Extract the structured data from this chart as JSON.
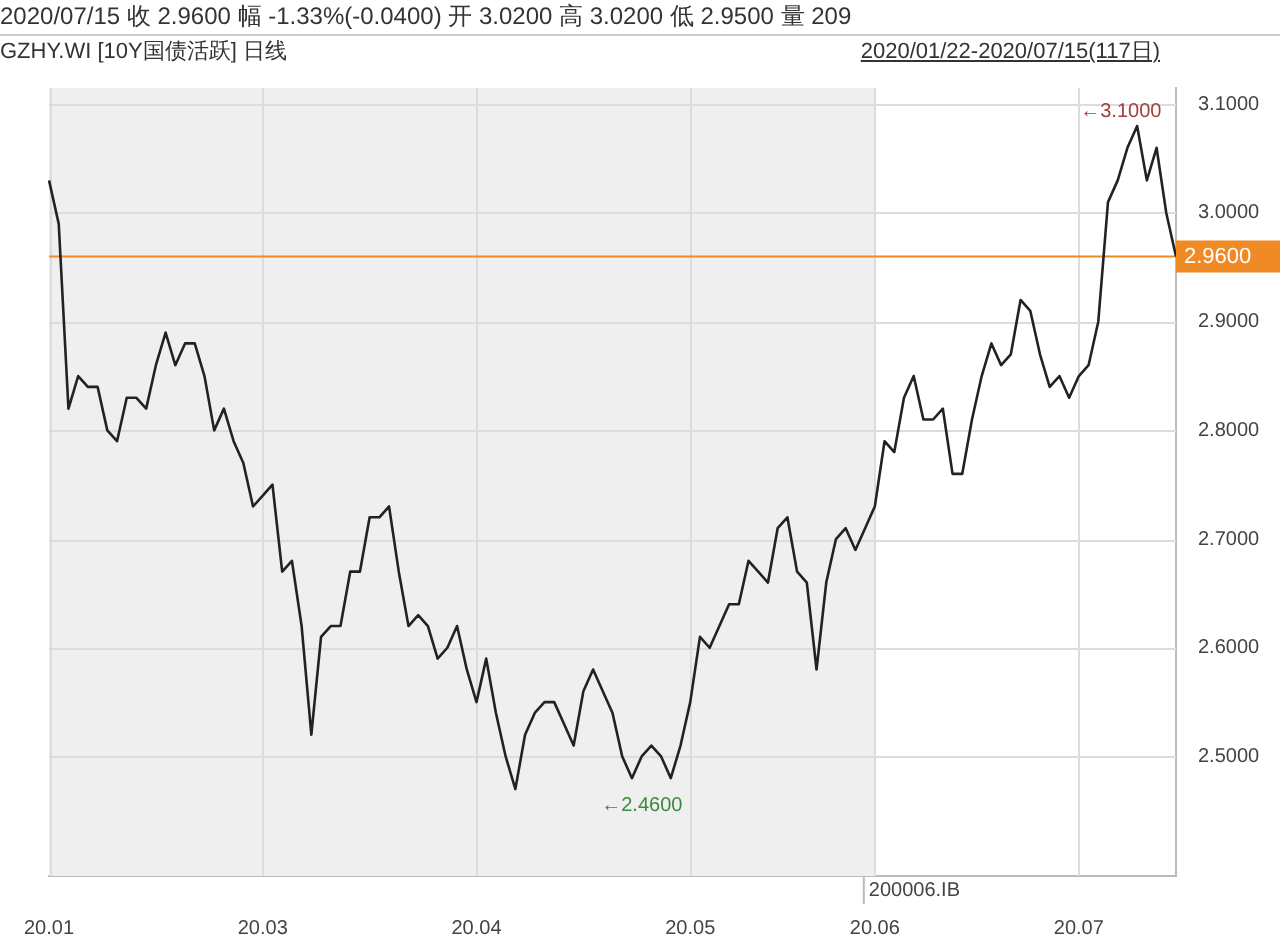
{
  "chart_data": {
    "type": "line",
    "title": "2020/07/15  收 2.9600  幅 -1.33%(-0.0400)  开 3.0200  高 3.0200  低 2.9500  量 209",
    "subtitle": "GZHY.WI [10Y国债活跃] 日线",
    "annotations": [
      "2020/01/22-2020/07/15(117日)",
      "←3.1000",
      "←2.4600"
    ],
    "categories": [
      "20.01",
      null,
      null,
      null,
      null,
      null,
      null,
      null,
      null,
      null,
      null,
      null,
      null,
      null,
      null,
      null,
      null,
      null,
      null,
      null,
      null,
      null,
      "20.03",
      null,
      null,
      null,
      null,
      null,
      null,
      null,
      null,
      null,
      null,
      null,
      null,
      null,
      null,
      null,
      null,
      null,
      null,
      null,
      null,
      null,
      "20.04",
      null,
      null,
      null,
      null,
      null,
      null,
      null,
      null,
      null,
      null,
      null,
      null,
      null,
      null,
      null,
      null,
      null,
      null,
      null,
      null,
      null,
      "20.05",
      null,
      null,
      null,
      null,
      null,
      null,
      null,
      null,
      null,
      null,
      null,
      null,
      null,
      null,
      null,
      null,
      null,
      null,
      "20.06",
      null,
      null,
      null,
      null,
      null,
      null,
      null,
      null,
      null,
      null,
      null,
      null,
      null,
      null,
      null,
      null,
      null,
      null,
      null,
      null,
      "20.07",
      null,
      null,
      null,
      null,
      null,
      null,
      null,
      null,
      null,
      null
    ],
    "series": [
      {
        "color": "#222222",
        "values": [
          3.03,
          2.99,
          2.82,
          2.85,
          2.84,
          2.84,
          2.8,
          2.79,
          2.83,
          2.83,
          2.82,
          2.86,
          2.89,
          2.86,
          2.88,
          2.88,
          2.85,
          2.8,
          2.82,
          2.79,
          2.77,
          2.73,
          2.74,
          2.75,
          2.67,
          2.68,
          2.62,
          2.52,
          2.61,
          2.62,
          2.62,
          2.67,
          2.67,
          2.72,
          2.72,
          2.73,
          2.67,
          2.62,
          2.63,
          2.62,
          2.59,
          2.6,
          2.62,
          2.58,
          2.55,
          2.59,
          2.54,
          2.5,
          2.47,
          2.52,
          2.54,
          2.55,
          2.55,
          2.53,
          2.51,
          2.56,
          2.58,
          2.56,
          2.54,
          2.5,
          2.48,
          2.5,
          2.51,
          2.5,
          2.48,
          2.51,
          2.55,
          2.61,
          2.6,
          2.62,
          2.64,
          2.64,
          2.68,
          2.67,
          2.66,
          2.71,
          2.72,
          2.67,
          2.66,
          2.58,
          2.66,
          2.7,
          2.71,
          2.69,
          2.71,
          2.73,
          2.79,
          2.78,
          2.83,
          2.85,
          2.81,
          2.81,
          2.82,
          2.76,
          2.76,
          2.81,
          2.85,
          2.88,
          2.86,
          2.87,
          2.92,
          2.91,
          2.87,
          2.84,
          2.85,
          2.83,
          2.85,
          2.86,
          2.9,
          3.01,
          3.03,
          3.06,
          3.08,
          3.03,
          3.06,
          3.0,
          2.96
        ]
      }
    ],
    "ylim": [
      2.39,
      3.115
    ],
    "yticks": [
      {
        "value": 2.5,
        "label": "2.5000"
      },
      {
        "value": 2.6,
        "label": "2.6000"
      },
      {
        "value": 2.7,
        "label": "2.7000"
      },
      {
        "value": 2.8,
        "label": "2.8000"
      },
      {
        "value": 2.9,
        "label": "2.9000"
      },
      {
        "value": 3.0,
        "label": "3.0000"
      },
      {
        "value": 3.1,
        "label": "3.1000"
      }
    ],
    "ref_lines": [
      {
        "axis": "y",
        "value": 2.96,
        "label": "2.9600",
        "color": "#f08a24"
      }
    ],
    "bands": [
      {
        "axis": "x",
        "from": "20.01",
        "to": "20.06",
        "label": "200006.IB",
        "color": "#efefef"
      }
    ],
    "grid": true,
    "marker": "none",
    "line_style": "solid"
  }
}
